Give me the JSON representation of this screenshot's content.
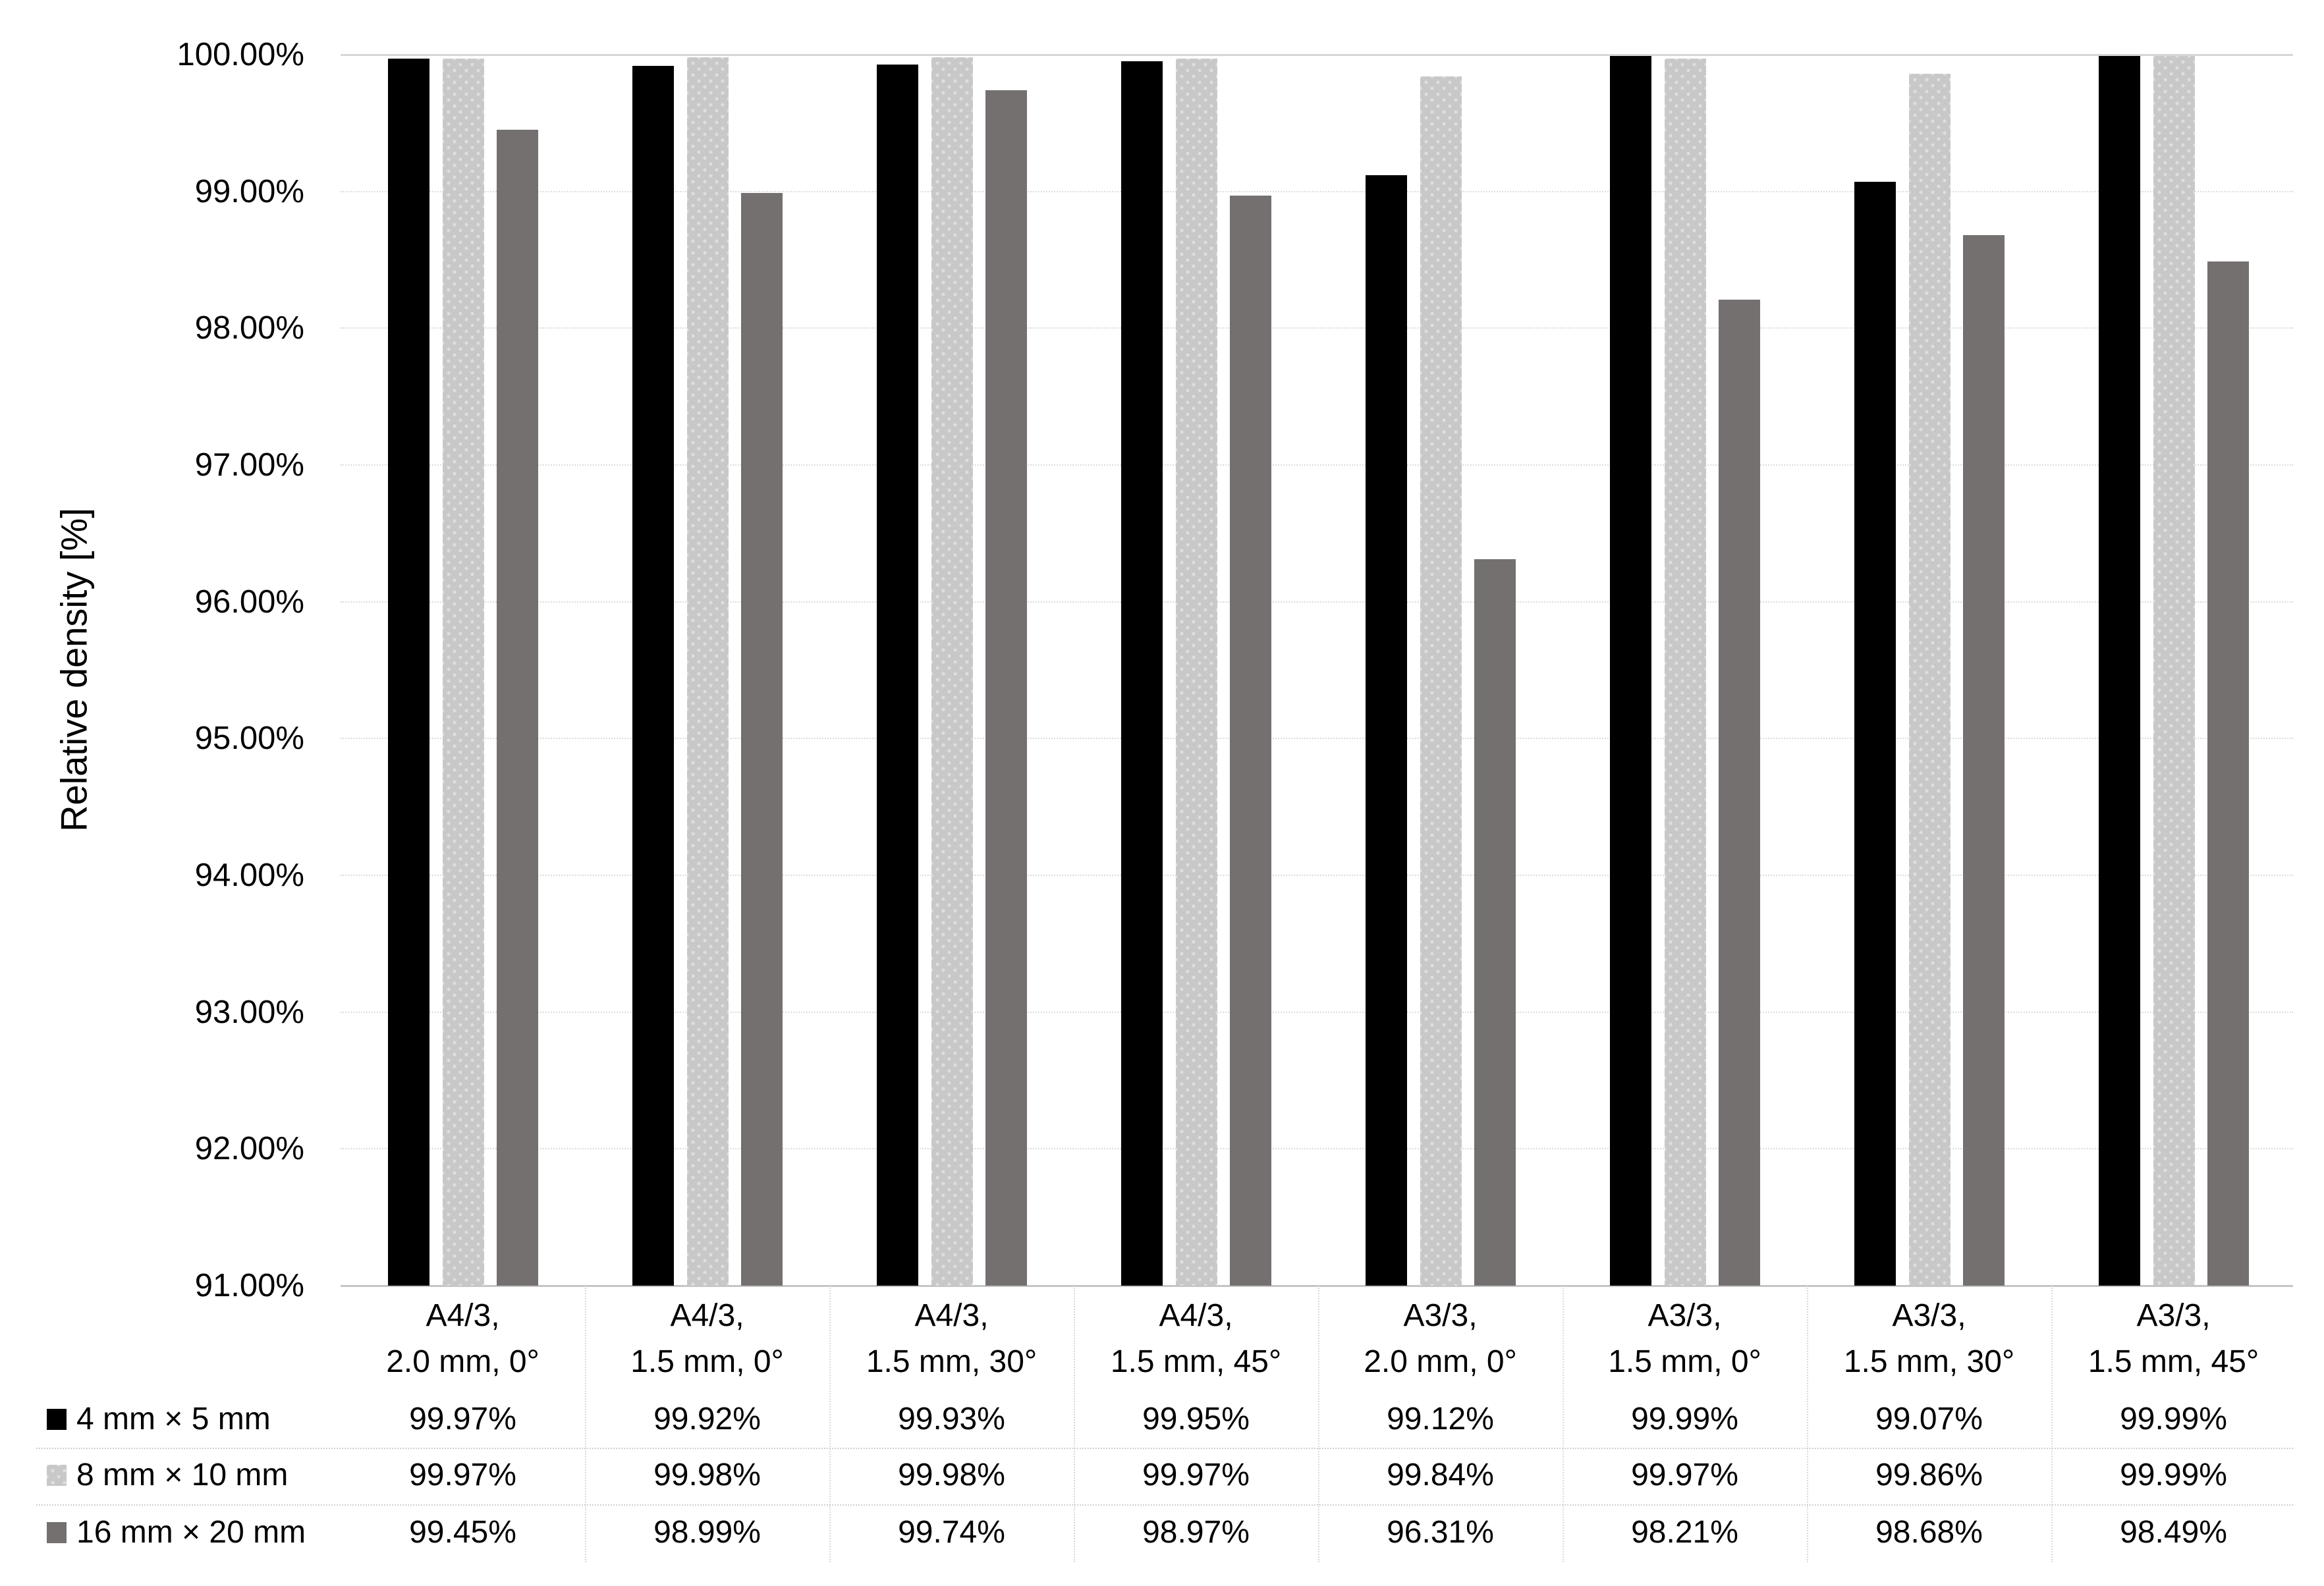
{
  "chart_data": {
    "type": "bar",
    "ylabel": "Relative density [%]",
    "ylim": [
      91,
      100
    ],
    "grid": true,
    "legend_position": "table-left",
    "yticks": [
      "100.00%",
      "99.00%",
      "98.00%",
      "97.00%",
      "96.00%",
      "95.00%",
      "94.00%",
      "93.00%",
      "92.00%",
      "91.00%"
    ],
    "categories": [
      {
        "line1": "A4/3,",
        "line2": "2.0 mm, 0°"
      },
      {
        "line1": "A4/3,",
        "line2": "1.5 mm, 0°"
      },
      {
        "line1": "A4/3,",
        "line2": "1.5 mm, 30°"
      },
      {
        "line1": "A4/3,",
        "line2": "1.5 mm, 45°"
      },
      {
        "line1": "A3/3,",
        "line2": "2.0 mm, 0°"
      },
      {
        "line1": "A3/3,",
        "line2": "1.5 mm, 0°"
      },
      {
        "line1": "A3/3,",
        "line2": "1.5 mm, 30°"
      },
      {
        "line1": "A3/3,",
        "line2": "1.5 mm, 45°"
      }
    ],
    "series": [
      {
        "name": "4 mm × 5 mm",
        "color": "#000000",
        "pattern": "solid",
        "values": [
          99.97,
          99.92,
          99.93,
          99.95,
          99.12,
          99.99,
          99.07,
          99.99
        ],
        "labels": [
          "99.97%",
          "99.92%",
          "99.93%",
          "99.95%",
          "99.12%",
          "99.99%",
          "99.07%",
          "99.99%"
        ]
      },
      {
        "name": "8 mm × 10 mm",
        "color": "#c9c8c8",
        "pattern": "dots",
        "values": [
          99.97,
          99.98,
          99.98,
          99.97,
          99.84,
          99.97,
          99.86,
          99.99
        ],
        "labels": [
          "99.97%",
          "99.98%",
          "99.98%",
          "99.97%",
          "99.84%",
          "99.97%",
          "99.86%",
          "99.99%"
        ]
      },
      {
        "name": "16 mm × 20 mm",
        "color": "#747070",
        "pattern": "solid",
        "values": [
          99.45,
          98.99,
          99.74,
          98.97,
          96.31,
          98.21,
          98.68,
          98.49
        ],
        "labels": [
          "99.45%",
          "98.99%",
          "99.74%",
          "98.97%",
          "96.31%",
          "98.21%",
          "98.68%",
          "98.49%"
        ]
      }
    ]
  }
}
